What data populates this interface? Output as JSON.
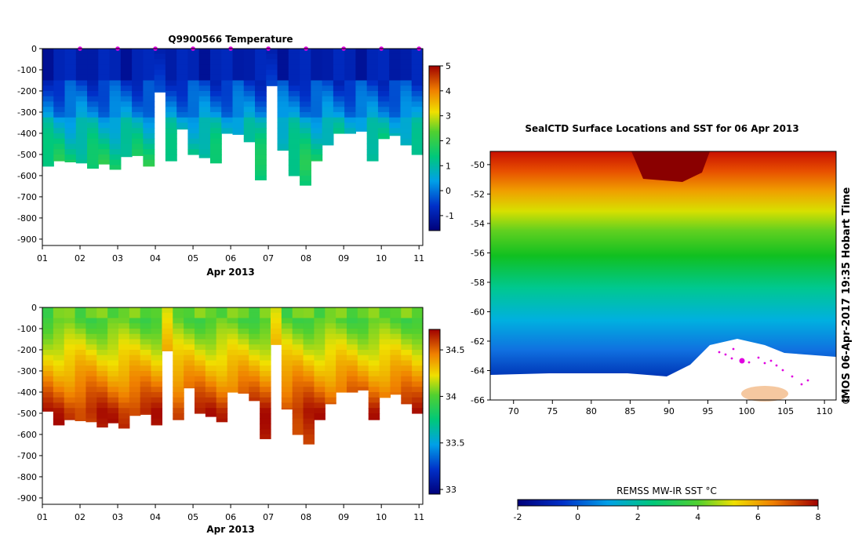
{
  "chart_data": [
    {
      "type": "heatmap",
      "title": "Q9900566  Temperature",
      "xlabel": "Apr 2013",
      "ylabel": "",
      "x_tick_labels": [
        "01",
        "02",
        "03",
        "04",
        "05",
        "06",
        "07",
        "08",
        "09",
        "10",
        "11"
      ],
      "x_range": [
        1,
        11.1
      ],
      "y_tick_labels": [
        "0",
        "-100",
        "-200",
        "-300",
        "-400",
        "-500",
        "-600",
        "-700",
        "-800",
        "-900"
      ],
      "ylim": [
        -930,
        0
      ],
      "colorbar": {
        "ticks": [
          "5",
          "4",
          "3",
          "2",
          "1",
          "0",
          "-1"
        ],
        "range": [
          -1.6,
          5
        ]
      },
      "profile_max_depth_m": [
        -555,
        -530,
        -535,
        -540,
        -565,
        -545,
        -570,
        -510,
        -505,
        -555,
        -205,
        -530,
        -380,
        -500,
        -515,
        -540,
        -400,
        -405,
        -440,
        -620,
        -175,
        -480,
        -600,
        -645,
        -530,
        -455,
        -400,
        -400,
        -390,
        -530,
        -425,
        -410,
        -455,
        -500
      ],
      "surface_location_markers_day": [
        2,
        3,
        4,
        5,
        6,
        7,
        8,
        9,
        10,
        11
      ]
    },
    {
      "type": "heatmap",
      "title": "",
      "xlabel": "Apr 2013",
      "ylabel": "",
      "x_tick_labels": [
        "01",
        "02",
        "03",
        "04",
        "05",
        "06",
        "07",
        "08",
        "09",
        "10",
        "11"
      ],
      "x_range": [
        1,
        11.1
      ],
      "y_tick_labels": [
        "0",
        "-100",
        "-200",
        "-300",
        "-400",
        "-500",
        "-600",
        "-700",
        "-800",
        "-900"
      ],
      "ylim": [
        -930,
        0
      ],
      "colorbar": {
        "ticks": [
          "34.5",
          "34",
          "33.5",
          "33"
        ],
        "range": [
          32.95,
          34.72
        ]
      },
      "profile_max_depth_m": [
        -490,
        -555,
        -530,
        -535,
        -540,
        -565,
        -545,
        -570,
        -510,
        -505,
        -555,
        -205,
        -530,
        -380,
        -500,
        -515,
        -540,
        -400,
        -405,
        -440,
        -620,
        -175,
        -480,
        -600,
        -645,
        -530,
        -455,
        -400,
        -400,
        -390,
        -530,
        -425,
        -410,
        -455,
        -500
      ]
    },
    {
      "type": "heatmap",
      "title": "SealCTD Surface Locations and SST for 06 Apr 2013",
      "xlabel": "",
      "ylabel": "",
      "x_tick_labels": [
        "70",
        "75",
        "80",
        "85",
        "90",
        "95",
        "100",
        "105",
        "110"
      ],
      "x_range": [
        67,
        111.5
      ],
      "y_tick_labels": [
        "-50",
        "-52",
        "-54",
        "-56",
        "-58",
        "-60",
        "-62",
        "-64",
        "-66"
      ],
      "y_range": [
        -66,
        -49.1
      ],
      "side_label": "IMOS 06-Apr-2017 19:35 Hobart Time",
      "copyright": "©",
      "colorbar": {
        "title": "REMSS MW-IR SST °C",
        "ticks": [
          "-2",
          "0",
          "2",
          "4",
          "6",
          "8"
        ],
        "range": [
          -2,
          8
        ]
      }
    }
  ]
}
